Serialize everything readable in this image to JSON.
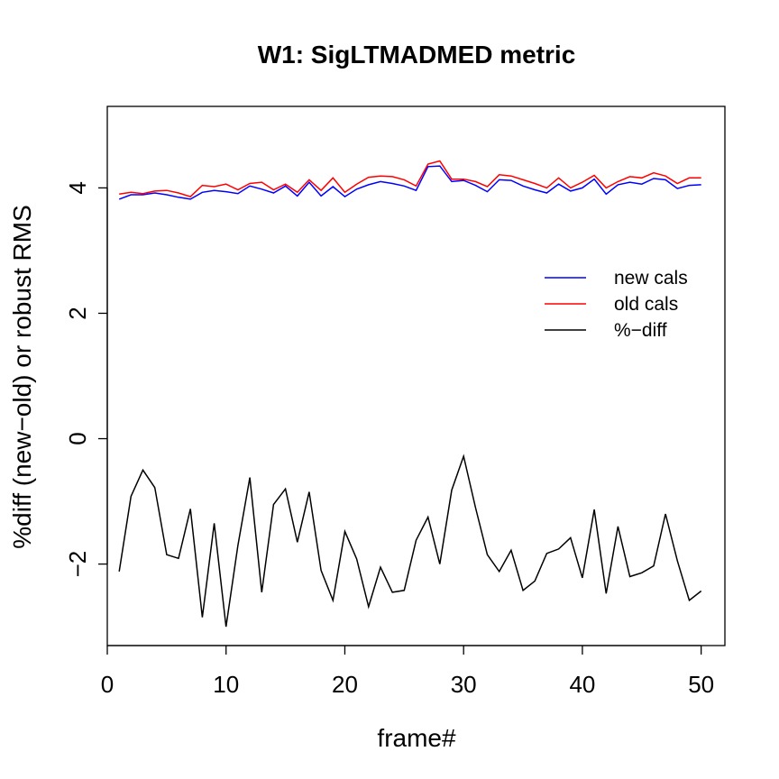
{
  "chart_data": {
    "type": "line",
    "title": "W1: SigLTMADMED metric",
    "xlabel": "frame#",
    "ylabel": "%diff (new−old) or robust RMS",
    "xlim": [
      0,
      52
    ],
    "ylim": [
      -3.3,
      5.3
    ],
    "x_ticks": [
      0,
      10,
      20,
      30,
      40,
      50
    ],
    "y_ticks": [
      -2,
      0,
      2,
      4
    ],
    "x_tick_labels": [
      "0",
      "10",
      "20",
      "30",
      "40",
      "50"
    ],
    "y_tick_labels": [
      "−2",
      "0",
      "2",
      "4"
    ],
    "grid": false,
    "legend_position": "right",
    "x": [
      1,
      2,
      3,
      4,
      5,
      6,
      7,
      8,
      9,
      10,
      11,
      12,
      13,
      14,
      15,
      16,
      17,
      18,
      19,
      20,
      21,
      22,
      23,
      24,
      25,
      26,
      27,
      28,
      29,
      30,
      31,
      32,
      33,
      34,
      35,
      36,
      37,
      38,
      39,
      40,
      41,
      42,
      43,
      44,
      45,
      46,
      47,
      48,
      49,
      50
    ],
    "series": [
      {
        "name": "new cals",
        "color": "#0000ff",
        "values": [
          3.82,
          3.89,
          3.89,
          3.92,
          3.89,
          3.85,
          3.82,
          3.93,
          3.96,
          3.94,
          3.91,
          4.03,
          3.98,
          3.92,
          4.03,
          3.87,
          4.09,
          3.87,
          4.02,
          3.86,
          3.98,
          4.05,
          4.1,
          4.07,
          4.03,
          3.96,
          4.34,
          4.35,
          4.1,
          4.12,
          4.04,
          3.94,
          4.13,
          4.12,
          4.03,
          3.97,
          3.92,
          4.06,
          3.95,
          4.0,
          4.14,
          3.9,
          4.05,
          4.09,
          4.06,
          4.15,
          4.13,
          3.99,
          4.04,
          4.05
        ]
      },
      {
        "name": "old cals",
        "color": "#ff0000",
        "values": [
          3.9,
          3.93,
          3.91,
          3.95,
          3.96,
          3.92,
          3.86,
          4.04,
          4.02,
          4.06,
          3.97,
          4.07,
          4.09,
          3.97,
          4.06,
          3.93,
          4.13,
          3.96,
          4.16,
          3.93,
          4.06,
          4.17,
          4.19,
          4.18,
          4.13,
          4.03,
          4.38,
          4.43,
          4.14,
          4.14,
          4.1,
          4.02,
          4.21,
          4.19,
          4.13,
          4.07,
          4.0,
          4.16,
          4.0,
          4.09,
          4.2,
          4.0,
          4.1,
          4.18,
          4.16,
          4.24,
          4.19,
          4.07,
          4.16,
          4.16
        ]
      },
      {
        "name": "%−diff",
        "color": "#000000",
        "values": [
          -2.12,
          -0.92,
          -0.5,
          -0.78,
          -1.85,
          -1.91,
          -1.12,
          -2.85,
          -1.35,
          -3.0,
          -1.7,
          -0.62,
          -2.45,
          -1.05,
          -0.8,
          -1.65,
          -0.85,
          -2.1,
          -2.58,
          -1.48,
          -1.92,
          -2.68,
          -2.05,
          -2.45,
          -2.42,
          -1.62,
          -1.25,
          -2.0,
          -0.82,
          -0.28,
          -1.1,
          -1.85,
          -2.12,
          -1.78,
          -2.42,
          -2.27,
          -1.83,
          -1.76,
          -1.58,
          -2.22,
          -1.13,
          -2.47,
          -1.4,
          -2.2,
          -2.14,
          -2.03,
          -1.2,
          -1.95,
          -2.58,
          -2.43
        ]
      }
    ]
  }
}
